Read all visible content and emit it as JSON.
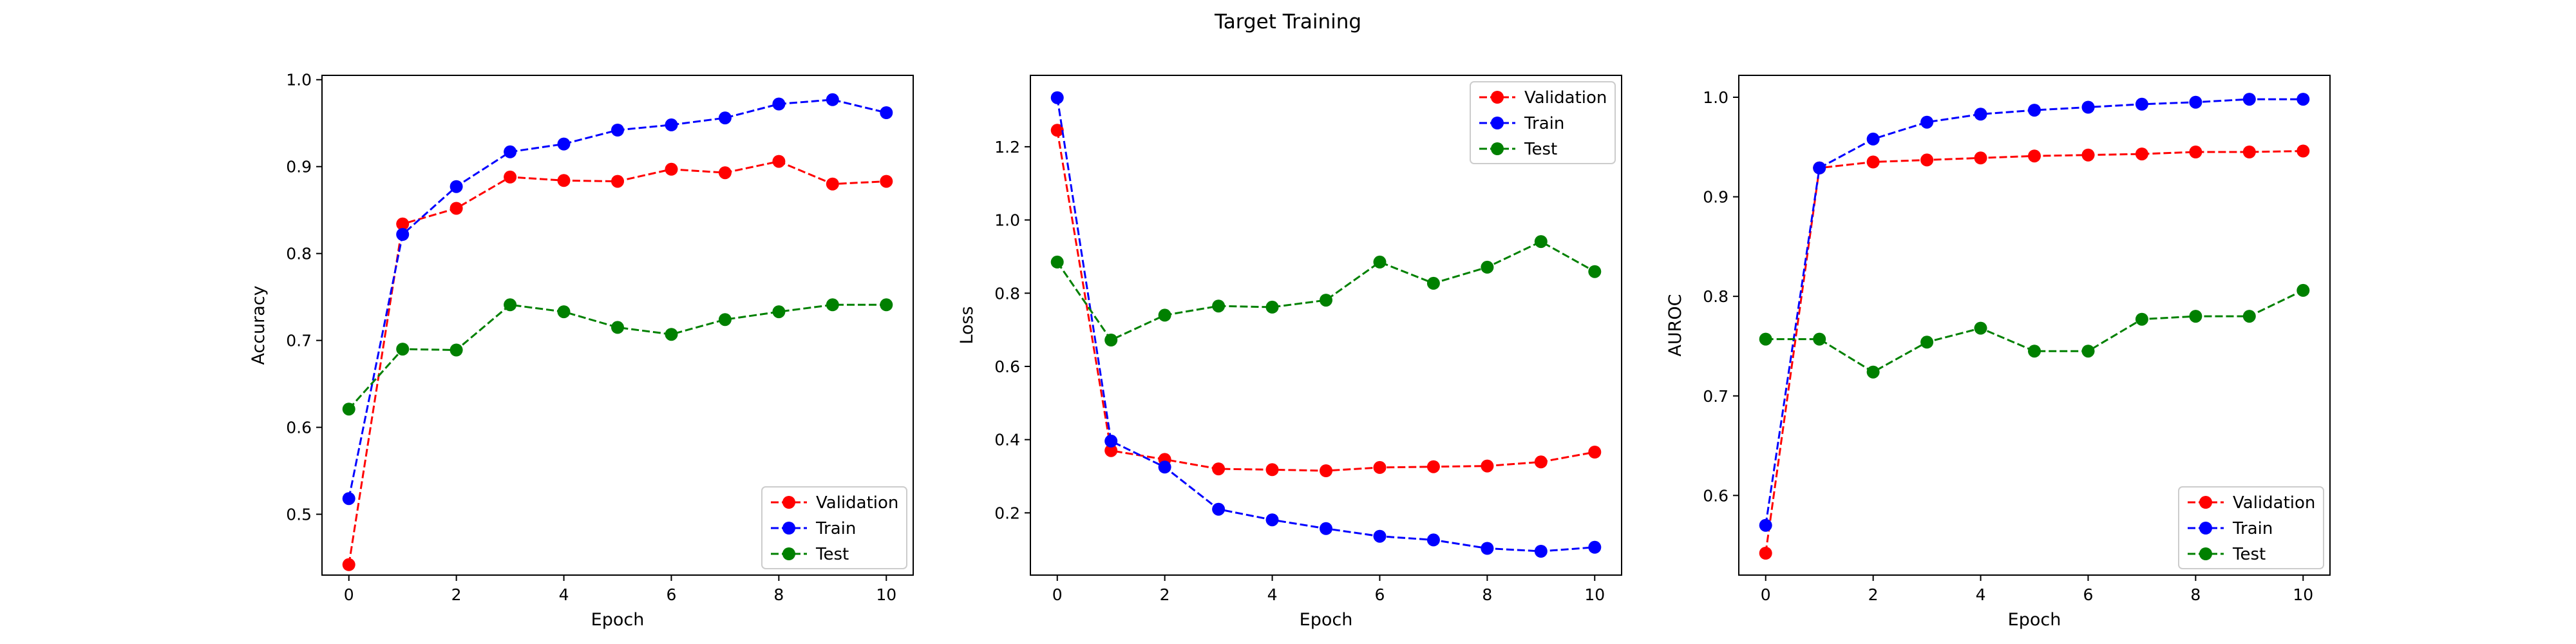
{
  "figure": {
    "title": "Target Training"
  },
  "colors": {
    "validation": "#ff0000",
    "train": "#0000ff",
    "test": "#008000"
  },
  "chart_data": [
    {
      "type": "line",
      "xlabel": "Epoch",
      "ylabel": "Accuracy",
      "x": [
        0,
        1,
        2,
        3,
        4,
        5,
        6,
        7,
        8,
        9,
        10
      ],
      "xlim": [
        -0.5,
        10.5
      ],
      "ylim": [
        0.43,
        1.005
      ],
      "xticks": [
        0,
        2,
        4,
        6,
        8,
        10
      ],
      "yticks": [
        0.5,
        0.6,
        0.7,
        0.8,
        0.9,
        1.0
      ],
      "ytick_labels": [
        "0.5",
        "0.6",
        "0.7",
        "0.8",
        "0.9",
        "1.0"
      ],
      "legend_loc": "lower-right",
      "series": [
        {
          "name": "Validation",
          "color": "#ff0000",
          "values": [
            0.442,
            0.834,
            0.852,
            0.888,
            0.884,
            0.883,
            0.897,
            0.893,
            0.906,
            0.88,
            0.883
          ]
        },
        {
          "name": "Train",
          "color": "#0000ff",
          "values": [
            0.518,
            0.822,
            0.877,
            0.917,
            0.926,
            0.942,
            0.948,
            0.956,
            0.972,
            0.977,
            0.962
          ]
        },
        {
          "name": "Test",
          "color": "#008000",
          "values": [
            0.621,
            0.69,
            0.689,
            0.741,
            0.733,
            0.715,
            0.707,
            0.724,
            0.733,
            0.741,
            0.741
          ]
        }
      ]
    },
    {
      "type": "line",
      "xlabel": "Epoch",
      "ylabel": "Loss",
      "x": [
        0,
        1,
        2,
        3,
        4,
        5,
        6,
        7,
        8,
        9,
        10
      ],
      "xlim": [
        -0.5,
        10.5
      ],
      "ylim": [
        0.03,
        1.395
      ],
      "xticks": [
        0,
        2,
        4,
        6,
        8,
        10
      ],
      "yticks": [
        0.2,
        0.4,
        0.6,
        0.8,
        1.0,
        1.2
      ],
      "ytick_labels": [
        "0.2",
        "0.4",
        "0.6",
        "0.8",
        "1.0",
        "1.2"
      ],
      "legend_loc": "top-right",
      "series": [
        {
          "name": "Validation",
          "color": "#ff0000",
          "values": [
            1.245,
            0.37,
            0.346,
            0.32,
            0.318,
            0.315,
            0.324,
            0.326,
            0.328,
            0.339,
            0.366
          ]
        },
        {
          "name": "Train",
          "color": "#0000ff",
          "values": [
            1.334,
            0.396,
            0.325,
            0.21,
            0.181,
            0.157,
            0.136,
            0.126,
            0.103,
            0.095,
            0.106
          ]
        },
        {
          "name": "Test",
          "color": "#008000",
          "values": [
            0.885,
            0.672,
            0.74,
            0.765,
            0.762,
            0.781,
            0.885,
            0.827,
            0.871,
            0.941,
            0.859
          ]
        }
      ]
    },
    {
      "type": "line",
      "xlabel": "Epoch",
      "ylabel": "AUROC",
      "x": [
        0,
        1,
        2,
        3,
        4,
        5,
        6,
        7,
        8,
        9,
        10
      ],
      "xlim": [
        -0.5,
        10.5
      ],
      "ylim": [
        0.52,
        1.022
      ],
      "xticks": [
        0,
        2,
        4,
        6,
        8,
        10
      ],
      "yticks": [
        0.6,
        0.7,
        0.8,
        0.9,
        1.0
      ],
      "ytick_labels": [
        "0.6",
        "0.7",
        "0.8",
        "0.9",
        "1.0"
      ],
      "legend_loc": "lower-right",
      "series": [
        {
          "name": "Validation",
          "color": "#ff0000",
          "values": [
            0.542,
            0.929,
            0.935,
            0.937,
            0.939,
            0.941,
            0.942,
            0.943,
            0.945,
            0.945,
            0.946
          ]
        },
        {
          "name": "Train",
          "color": "#0000ff",
          "values": [
            0.57,
            0.929,
            0.958,
            0.975,
            0.983,
            0.987,
            0.99,
            0.993,
            0.995,
            0.998,
            0.998
          ]
        },
        {
          "name": "Test",
          "color": "#008000",
          "values": [
            0.757,
            0.757,
            0.724,
            0.754,
            0.768,
            0.745,
            0.745,
            0.777,
            0.78,
            0.78,
            0.806
          ]
        }
      ]
    }
  ]
}
